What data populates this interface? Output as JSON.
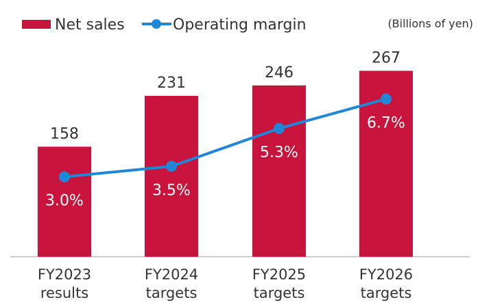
{
  "chart_data": {
    "type": "bar",
    "unit_note": "(Billions of yen)",
    "categories": [
      [
        "FY2023",
        "results"
      ],
      [
        "FY2024",
        "targets"
      ],
      [
        "FY2025",
        "targets"
      ],
      [
        "FY2026",
        "targets"
      ]
    ],
    "series": [
      {
        "name": "Net sales",
        "kind": "bar",
        "color": "#c8143c",
        "values": [
          158,
          231,
          246,
          267
        ],
        "labels": [
          "158",
          "231",
          "246",
          "267"
        ]
      },
      {
        "name": "Operating margin",
        "kind": "line",
        "color": "#1f86d8",
        "values": [
          3.0,
          3.5,
          5.3,
          6.7
        ],
        "labels": [
          "3.0%",
          "3.5%",
          "5.3%",
          "6.7%"
        ]
      }
    ],
    "bar_ylim": [
      0,
      290
    ],
    "line_ylim": [
      -0.8,
      8.8
    ],
    "legend_position": "top"
  }
}
